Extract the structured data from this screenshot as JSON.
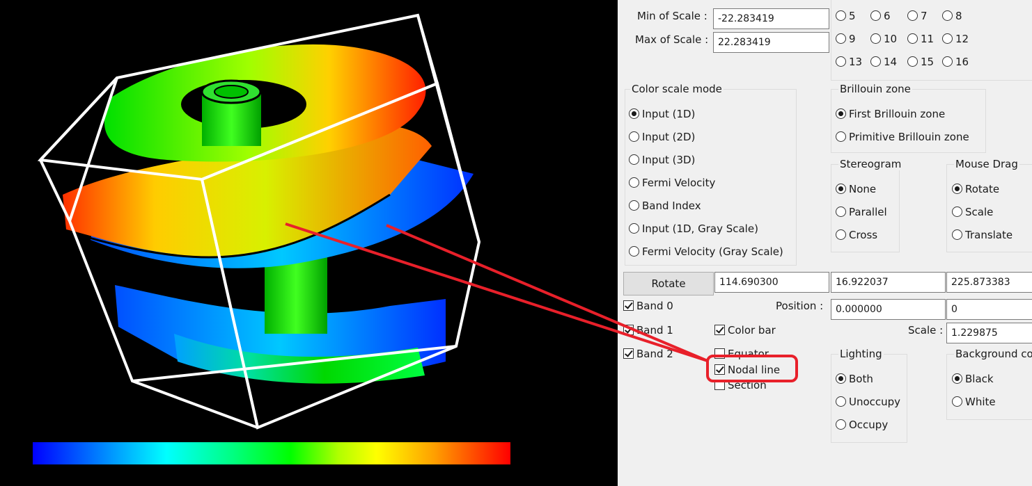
{
  "scale": {
    "min_label": "Min of Scale :",
    "min_value": "-22.283419",
    "max_label": "Max of Scale :",
    "max_value": "22.283419"
  },
  "band_radios": {
    "row1": [
      "5",
      "6",
      "7",
      "8"
    ],
    "row2": [
      "9",
      "10",
      "11",
      "12"
    ],
    "row3": [
      "13",
      "14",
      "15",
      "16"
    ]
  },
  "color_scale_mode": {
    "title": "Color scale mode",
    "options": [
      "Input (1D)",
      "Input (2D)",
      "Input (3D)",
      "Fermi Velocity",
      "Band Index",
      "Input (1D, Gray Scale)",
      "Fermi Velocity (Gray Scale)"
    ],
    "selected": "Input (1D)"
  },
  "brillouin_zone": {
    "title": "Brillouin zone",
    "options": [
      "First Brillouin zone",
      "Primitive Brillouin zone"
    ],
    "selected": "First Brillouin zone"
  },
  "stereogram": {
    "title": "Stereogram",
    "options": [
      "None",
      "Parallel",
      "Cross"
    ],
    "selected": "None"
  },
  "mouse_drag": {
    "title": "Mouse Drag",
    "options": [
      "Rotate",
      "Scale",
      "Translate"
    ],
    "selected": "Rotate"
  },
  "rotate": {
    "button_label": "Rotate",
    "values": [
      "114.690300",
      "16.922037",
      "225.873383"
    ]
  },
  "position": {
    "label": "Position :",
    "values": [
      "0.000000",
      "0"
    ]
  },
  "scale_field": {
    "label": "Scale :",
    "value": "1.229875"
  },
  "bands": [
    "Band 0",
    "Band 1",
    "Band 2"
  ],
  "display_checks": {
    "color_bar": "Color bar",
    "equator": "Equator",
    "nodal_line": "Nodal line",
    "section": "Section"
  },
  "lighting": {
    "title": "Lighting",
    "options": [
      "Both",
      "Unoccupy",
      "Occupy"
    ],
    "selected": "Both"
  },
  "background": {
    "title": "Background color",
    "options": [
      "Black",
      "White"
    ],
    "selected": "Black"
  },
  "colors": {
    "annotation": "#e8202a",
    "viewport_bg": "#000000",
    "panel_bg": "#f0f0f0"
  }
}
